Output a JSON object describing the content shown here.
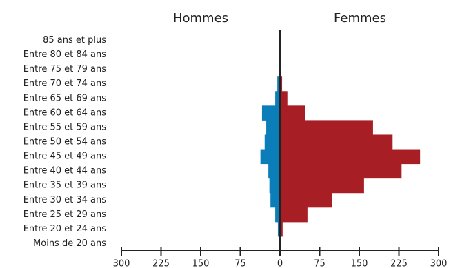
{
  "chart_data": {
    "type": "pyramid",
    "categories": [
      "85 ans et plus",
      "Entre 80 et 84 ans",
      "Entre 75 et 79 ans",
      "Entre 70 et 74 ans",
      "Entre 65 et 69 ans",
      "Entre 60 et 64 ans",
      "Entre 55 et 59 ans",
      "Entre 50 et 54 ans",
      "Entre 45 et 49 ans",
      "Entre 40 et 44 ans",
      "Entre 35 et 39 ans",
      "Entre 30 et 34 ans",
      "Entre 25 et 29 ans",
      "Entre 20 et 24 ans",
      "Moins de 20 ans"
    ],
    "series": [
      {
        "name": "Hommes",
        "color": "#0b7db8",
        "values": [
          0,
          0,
          0,
          -5,
          -9,
          -34,
          -26,
          -29,
          -37,
          -22,
          -20,
          -18,
          -9,
          -4,
          0
        ]
      },
      {
        "name": "Femmes",
        "color": "#a71f25",
        "values": [
          0,
          0,
          0,
          4,
          14,
          47,
          176,
          213,
          265,
          230,
          159,
          99,
          52,
          5,
          0
        ]
      }
    ],
    "xlim": [
      -300,
      300
    ],
    "xticks": [
      {
        "value": -300,
        "label": "300"
      },
      {
        "value": -225,
        "label": "225"
      },
      {
        "value": -150,
        "label": "150"
      },
      {
        "value": -75,
        "label": "75"
      },
      0,
      75,
      150,
      225,
      300
    ]
  }
}
